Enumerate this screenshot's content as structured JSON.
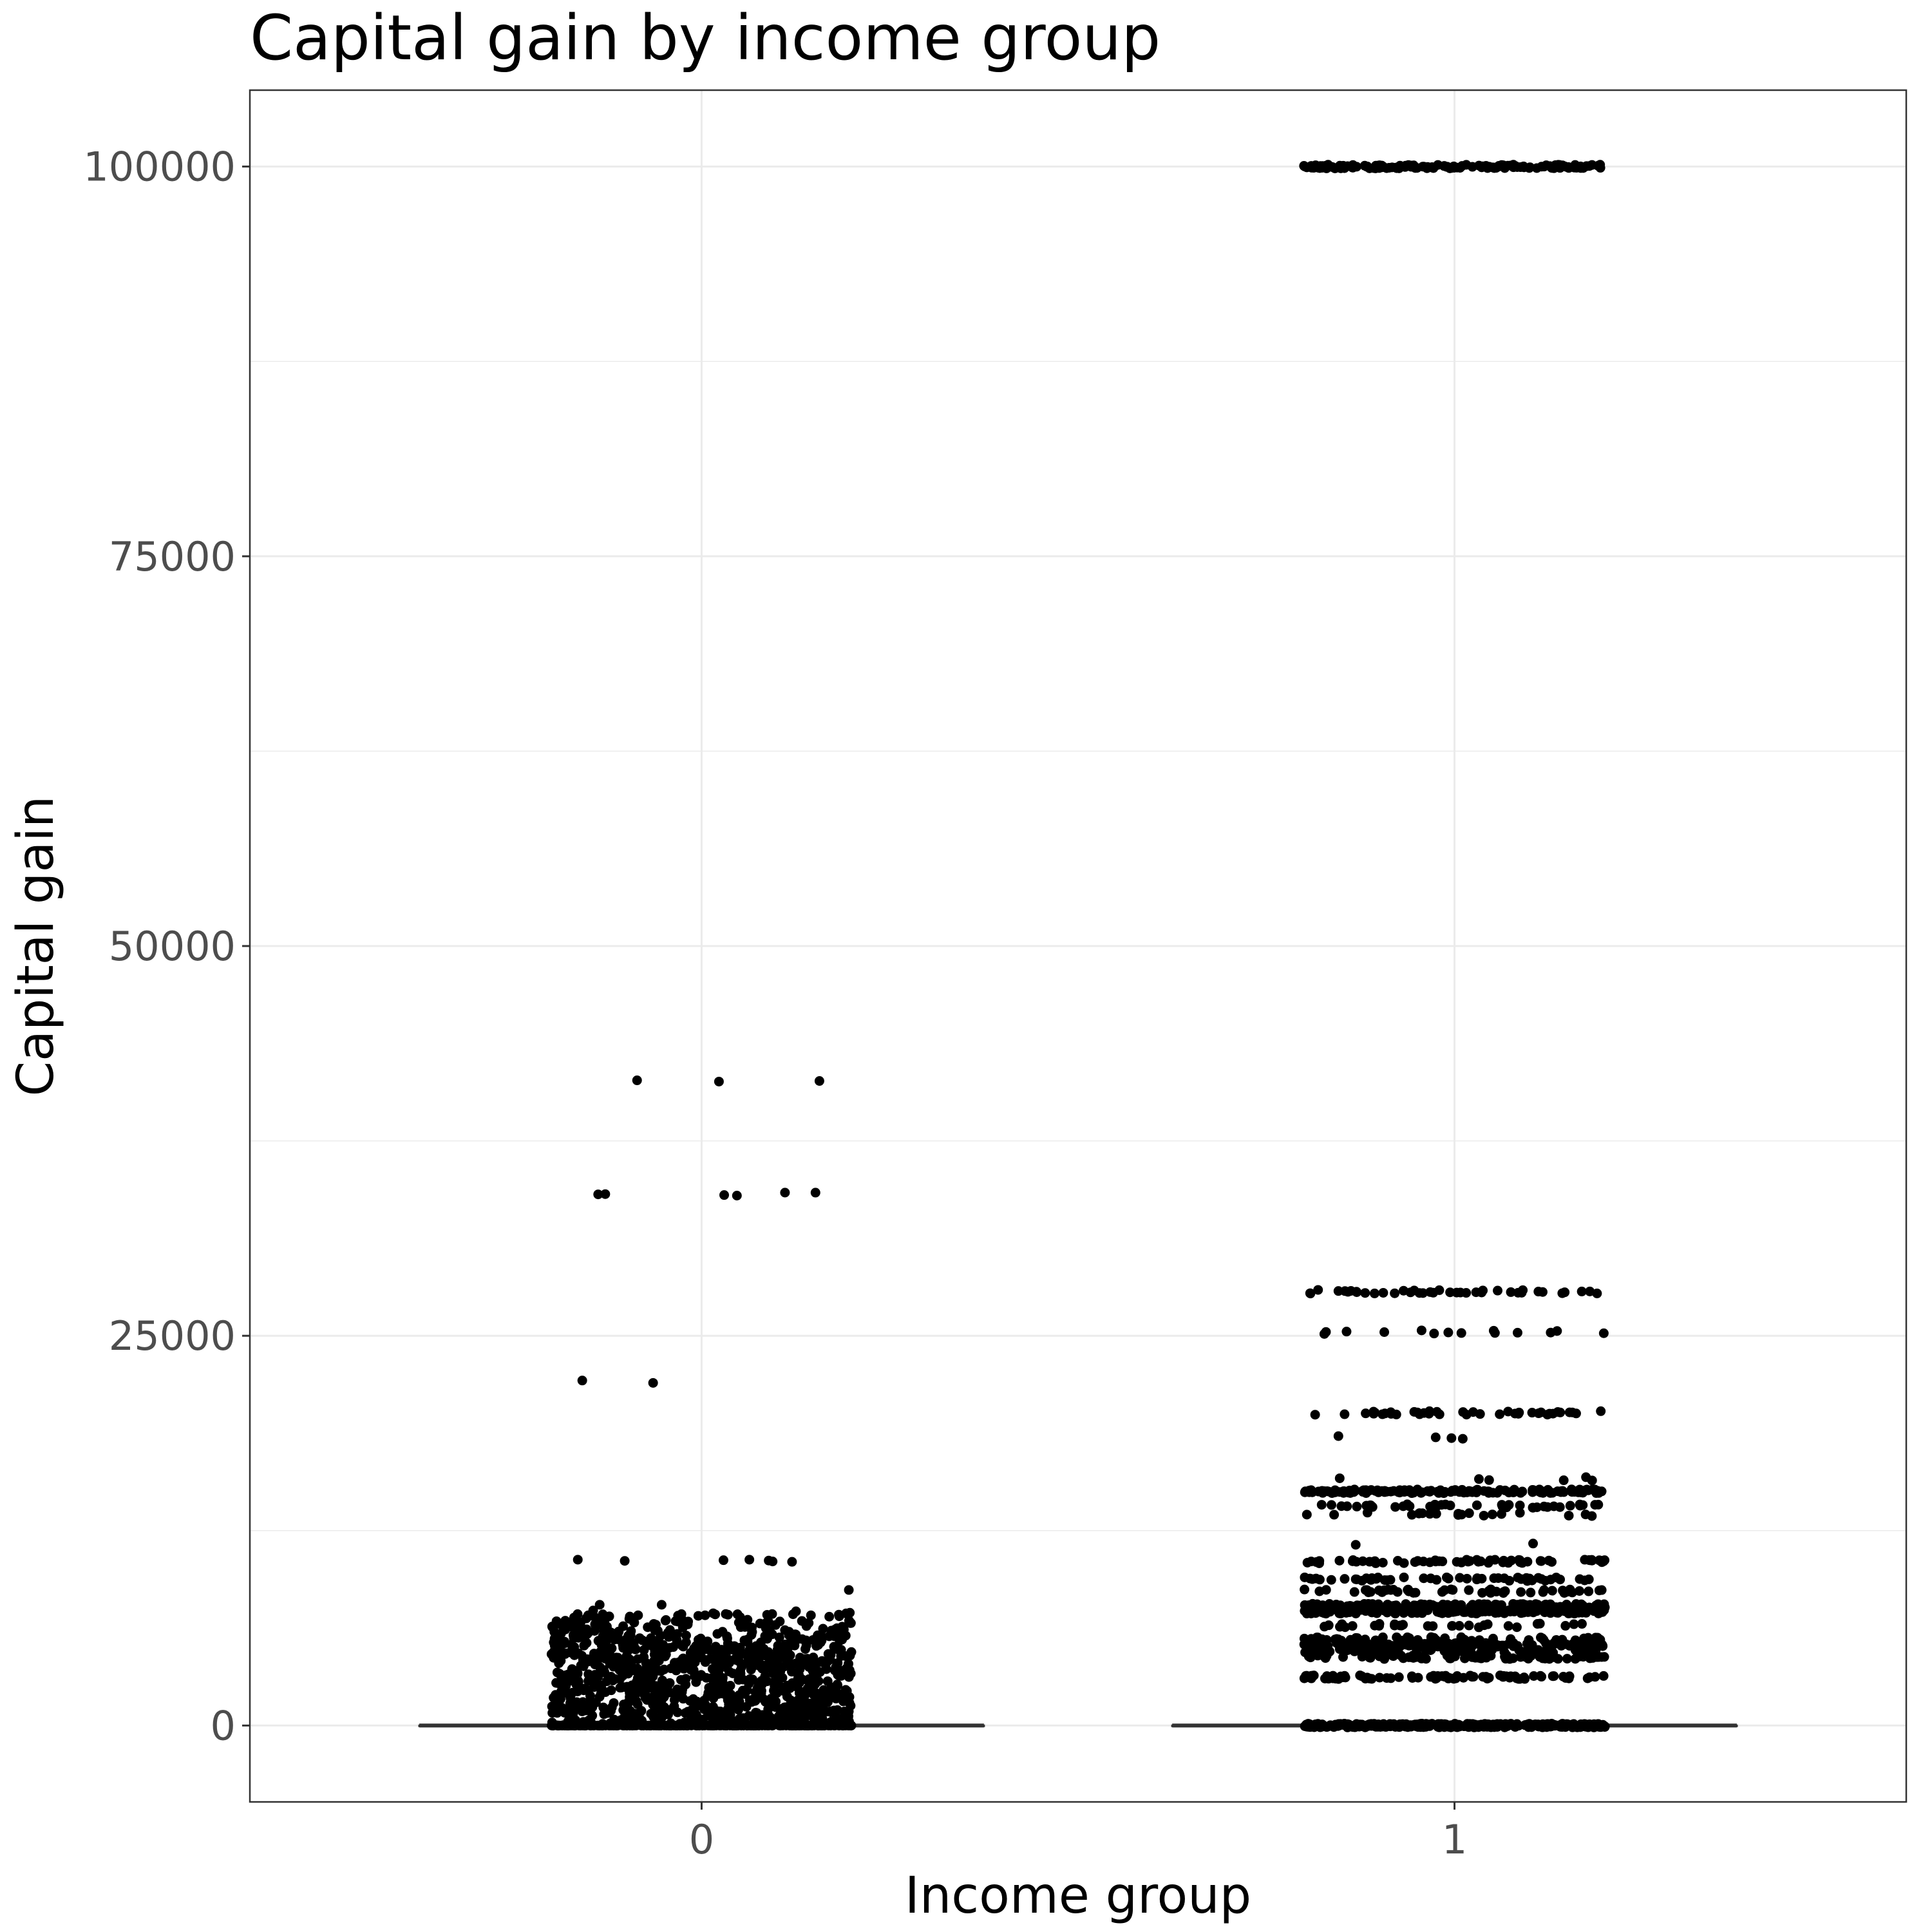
{
  "chart_data": {
    "type": "scatter",
    "subtype": "box-and-jitter",
    "title": "Capital gain by income group",
    "xlabel": "Income group",
    "ylabel": "Capital gain",
    "categories": [
      "0",
      "1"
    ],
    "y_ticks": [
      "0",
      "25000",
      "50000",
      "75000",
      "100000"
    ],
    "y_tick_values": [
      0,
      25000,
      50000,
      75000,
      100000
    ],
    "ylim": [
      -4900,
      104900
    ],
    "grid": true,
    "legend": "none",
    "colors": {
      "points": "#000000",
      "median_line": "#333333",
      "grid": "#ebebeb",
      "panel_border": "#333333",
      "tick_text": "#4d4d4d"
    },
    "groups": [
      {
        "category": "0",
        "median": 0,
        "q1": 0,
        "q3": 0,
        "jitter_width": 0.2,
        "dense_points": {
          "range": [
            0,
            7600
          ],
          "count": 1300
        },
        "outliers": [
          {
            "y": 41310,
            "count": 3
          },
          {
            "y": 34095,
            "count": 6
          },
          {
            "y": 22040,
            "count": 2
          },
          {
            "y": 10566,
            "count": 7
          },
          {
            "y": 8614,
            "count": 1
          },
          {
            "y": 7688,
            "count": 2
          }
        ]
      },
      {
        "category": "1",
        "median": 0,
        "q1": 0,
        "q3": 0,
        "jitter_width": 0.2,
        "value_levels": [
          {
            "y": 99999,
            "count": 160
          },
          {
            "y": 27828,
            "count": 40
          },
          {
            "y": 25236,
            "count": 14
          },
          {
            "y": 20051,
            "count": 40
          },
          {
            "y": 18481,
            "count": 4
          },
          {
            "y": 15831,
            "count": 6
          },
          {
            "y": 15024,
            "count": 150
          },
          {
            "y": 14084,
            "count": 40
          },
          {
            "y": 13550,
            "count": 20
          },
          {
            "y": 11678,
            "count": 2
          },
          {
            "y": 10520,
            "count": 60
          },
          {
            "y": 9386,
            "count": 50
          },
          {
            "y": 8614,
            "count": 50
          },
          {
            "y": 7688,
            "count": 150
          },
          {
            "y": 7298,
            "count": 150
          },
          {
            "y": 6418,
            "count": 30
          },
          {
            "y": 5556,
            "count": 50
          },
          {
            "y": 5178,
            "count": 150
          },
          {
            "y": 4787,
            "count": 60
          },
          {
            "y": 4386,
            "count": 80
          },
          {
            "y": 3103,
            "count": 80
          },
          {
            "y": 0,
            "count": 400
          }
        ]
      }
    ]
  }
}
